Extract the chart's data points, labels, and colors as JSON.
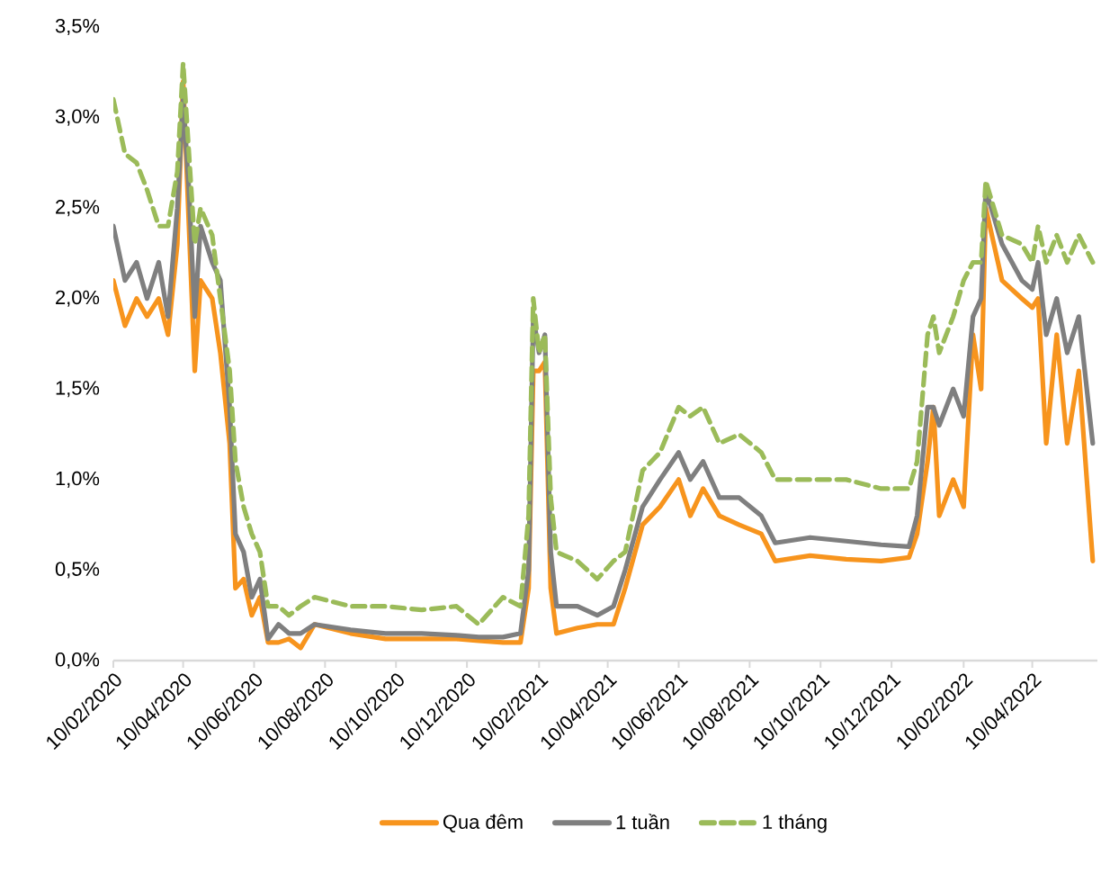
{
  "chart_data": {
    "type": "line",
    "x": [
      "2020-02-10",
      "2020-02-20",
      "2020-03-01",
      "2020-03-10",
      "2020-03-20",
      "2020-03-28",
      "2020-04-05",
      "2020-04-10",
      "2020-04-15",
      "2020-04-20",
      "2020-04-25",
      "2020-05-05",
      "2020-05-12",
      "2020-05-20",
      "2020-05-25",
      "2020-06-01",
      "2020-06-08",
      "2020-06-15",
      "2020-06-22",
      "2020-07-01",
      "2020-07-10",
      "2020-07-20",
      "2020-08-01",
      "2020-09-01",
      "2020-10-01",
      "2020-11-01",
      "2020-12-01",
      "2020-12-20",
      "2021-01-10",
      "2021-01-25",
      "2021-02-01",
      "2021-02-05",
      "2021-02-10",
      "2021-02-15",
      "2021-02-20",
      "2021-02-25",
      "2021-03-15",
      "2021-04-01",
      "2021-04-15",
      "2021-04-25",
      "2021-05-10",
      "2021-05-25",
      "2021-06-10",
      "2021-06-20",
      "2021-07-01",
      "2021-07-15",
      "2021-08-01",
      "2021-08-20",
      "2021-09-01",
      "2021-10-01",
      "2021-11-01",
      "2021-12-01",
      "2021-12-25",
      "2022-01-01",
      "2022-01-10",
      "2022-01-15",
      "2022-01-20",
      "2022-02-01",
      "2022-02-10",
      "2022-02-18",
      "2022-02-25",
      "2022-03-01",
      "2022-03-15",
      "2022-04-01",
      "2022-04-10",
      "2022-04-15",
      "2022-04-22",
      "2022-05-01",
      "2022-05-10",
      "2022-05-20",
      "2022-06-01"
    ],
    "series": [
      {
        "name": "Qua đêm",
        "color": "#f7941d",
        "line_style": "solid",
        "values": [
          2.1,
          1.85,
          2.0,
          1.9,
          2.0,
          1.8,
          2.3,
          3.2,
          2.4,
          1.6,
          2.1,
          2.0,
          1.7,
          1.2,
          0.4,
          0.45,
          0.25,
          0.35,
          0.1,
          0.1,
          0.12,
          0.07,
          0.2,
          0.15,
          0.12,
          0.12,
          0.12,
          0.11,
          0.1,
          0.1,
          0.4,
          1.6,
          1.6,
          1.65,
          0.4,
          0.15,
          0.18,
          0.2,
          0.2,
          0.4,
          0.75,
          0.85,
          1.0,
          0.8,
          0.95,
          0.8,
          0.75,
          0.7,
          0.55,
          0.58,
          0.56,
          0.55,
          0.57,
          0.7,
          1.1,
          1.4,
          0.8,
          1.0,
          0.85,
          1.8,
          1.5,
          2.5,
          2.1,
          2.0,
          1.95,
          2.0,
          1.2,
          1.8,
          1.2,
          1.6,
          0.55
        ]
      },
      {
        "name": "1 tuần",
        "color": "#7f7f7f",
        "line_style": "solid",
        "values": [
          2.4,
          2.1,
          2.2,
          2.0,
          2.2,
          1.9,
          2.5,
          3.1,
          2.6,
          1.9,
          2.4,
          2.2,
          2.1,
          1.4,
          0.7,
          0.6,
          0.35,
          0.45,
          0.12,
          0.2,
          0.15,
          0.15,
          0.2,
          0.17,
          0.15,
          0.15,
          0.14,
          0.13,
          0.13,
          0.15,
          0.5,
          1.9,
          1.7,
          1.8,
          0.6,
          0.3,
          0.3,
          0.25,
          0.3,
          0.5,
          0.85,
          1.0,
          1.15,
          1.0,
          1.1,
          0.9,
          0.9,
          0.8,
          0.65,
          0.68,
          0.66,
          0.64,
          0.63,
          0.8,
          1.4,
          1.4,
          1.3,
          1.5,
          1.35,
          1.9,
          2.0,
          2.6,
          2.3,
          2.1,
          2.05,
          2.2,
          1.8,
          2.0,
          1.7,
          1.9,
          1.2
        ]
      },
      {
        "name": "1 tháng",
        "color": "#9bbb59",
        "line_style": "dashed",
        "values": [
          3.1,
          2.8,
          2.75,
          2.6,
          2.4,
          2.4,
          2.7,
          3.3,
          2.8,
          2.3,
          2.5,
          2.35,
          2.0,
          1.6,
          1.1,
          0.85,
          0.7,
          0.6,
          0.3,
          0.3,
          0.25,
          0.3,
          0.35,
          0.3,
          0.3,
          0.28,
          0.3,
          0.2,
          0.35,
          0.3,
          0.8,
          2.0,
          1.7,
          1.8,
          0.9,
          0.6,
          0.55,
          0.45,
          0.55,
          0.6,
          1.05,
          1.15,
          1.4,
          1.35,
          1.4,
          1.2,
          1.25,
          1.15,
          1.0,
          1.0,
          1.0,
          0.95,
          0.95,
          1.1,
          1.8,
          1.9,
          1.7,
          1.9,
          2.1,
          2.2,
          2.2,
          2.65,
          2.35,
          2.3,
          2.2,
          2.4,
          2.2,
          2.35,
          2.2,
          2.35,
          2.2
        ]
      }
    ],
    "xlim": [
      "2020-02-10",
      "2022-06-05"
    ],
    "xticks": [
      {
        "value": "2020-02-10",
        "label": "10/02/2020"
      },
      {
        "value": "2020-04-10",
        "label": "10/04/2020"
      },
      {
        "value": "2020-06-10",
        "label": "10/06/2020"
      },
      {
        "value": "2020-08-10",
        "label": "10/08/2020"
      },
      {
        "value": "2020-10-10",
        "label": "10/10/2020"
      },
      {
        "value": "2020-12-10",
        "label": "10/12/2020"
      },
      {
        "value": "2021-02-10",
        "label": "10/02/2021"
      },
      {
        "value": "2021-04-10",
        "label": "10/04/2021"
      },
      {
        "value": "2021-06-10",
        "label": "10/06/2021"
      },
      {
        "value": "2021-08-10",
        "label": "10/08/2021"
      },
      {
        "value": "2021-10-10",
        "label": "10/10/2021"
      },
      {
        "value": "2021-12-10",
        "label": "10/12/2021"
      },
      {
        "value": "2022-02-10",
        "label": "10/02/2022"
      },
      {
        "value": "2022-04-10",
        "label": "10/04/2022"
      }
    ],
    "ylim": [
      0,
      3.5
    ],
    "yticks": [
      {
        "value": 0,
        "label": "0,0%"
      },
      {
        "value": 0.5,
        "label": "0,5%"
      },
      {
        "value": 1,
        "label": "1,0%"
      },
      {
        "value": 1.5,
        "label": "1,5%"
      },
      {
        "value": 2,
        "label": "2,0%"
      },
      {
        "value": 2.5,
        "label": "2,5%"
      },
      {
        "value": 3,
        "label": "3,0%"
      },
      {
        "value": 3.5,
        "label": "3,5%"
      }
    ],
    "grid": false,
    "legend": "bottom"
  }
}
